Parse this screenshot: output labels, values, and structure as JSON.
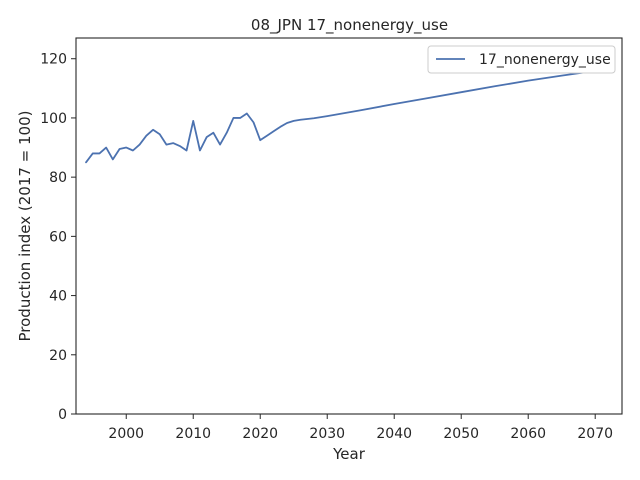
{
  "chart_data": {
    "type": "line",
    "title": "08_JPN 17_nonenergy_use",
    "xlabel": "Year",
    "ylabel": "Production index (2017 = 100)",
    "xlim": [
      1992.5,
      2074
    ],
    "ylim": [
      0,
      127
    ],
    "xticks": [
      2000,
      2010,
      2020,
      2030,
      2040,
      2050,
      2060,
      2070
    ],
    "yticks": [
      0,
      20,
      40,
      60,
      80,
      100,
      120
    ],
    "grid": false,
    "legend_position": "top-right",
    "series": [
      {
        "name": "17_nonenergy_use",
        "color": "#4c72b0",
        "x": [
          1994,
          1995,
          1996,
          1997,
          1998,
          1999,
          2000,
          2001,
          2002,
          2003,
          2004,
          2005,
          2006,
          2007,
          2008,
          2009,
          2010,
          2011,
          2012,
          2013,
          2014,
          2015,
          2016,
          2017,
          2018,
          2019,
          2020,
          2021,
          2022,
          2023,
          2024,
          2025,
          2026,
          2028,
          2030,
          2035,
          2040,
          2045,
          2050,
          2055,
          2060,
          2065,
          2070
        ],
        "y": [
          85,
          88,
          88,
          90,
          86,
          89.5,
          90,
          89,
          91,
          94,
          96,
          94.5,
          91,
          91.5,
          90.5,
          89,
          99,
          89,
          93.5,
          95,
          91,
          95,
          100,
          100,
          101.5,
          98.5,
          92.5,
          94,
          95.5,
          97,
          98.3,
          99,
          99.4,
          99.9,
          100.6,
          102.6,
          104.7,
          106.7,
          108.7,
          110.7,
          112.6,
          114.3,
          115.9
        ]
      }
    ]
  }
}
